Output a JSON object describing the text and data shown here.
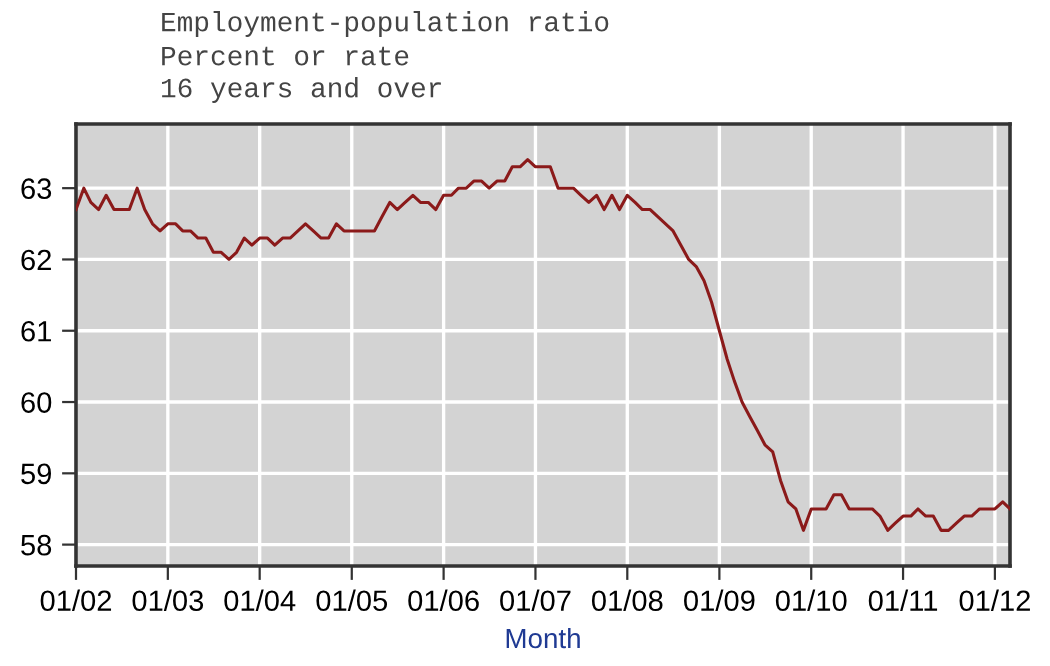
{
  "chart_data": {
    "type": "line",
    "title": "Employment-population ratio",
    "subtitle": "Percent or rate\n16 years and over",
    "xlabel": "Month",
    "x": [
      "2002-01",
      "2002-02",
      "2002-03",
      "2002-04",
      "2002-05",
      "2002-06",
      "2002-07",
      "2002-08",
      "2002-09",
      "2002-10",
      "2002-11",
      "2002-12",
      "2003-01",
      "2003-02",
      "2003-03",
      "2003-04",
      "2003-05",
      "2003-06",
      "2003-07",
      "2003-08",
      "2003-09",
      "2003-10",
      "2003-11",
      "2003-12",
      "2004-01",
      "2004-02",
      "2004-03",
      "2004-04",
      "2004-05",
      "2004-06",
      "2004-07",
      "2004-08",
      "2004-09",
      "2004-10",
      "2004-11",
      "2004-12",
      "2005-01",
      "2005-02",
      "2005-03",
      "2005-04",
      "2005-05",
      "2005-06",
      "2005-07",
      "2005-08",
      "2005-09",
      "2005-10",
      "2005-11",
      "2005-12",
      "2006-01",
      "2006-02",
      "2006-03",
      "2006-04",
      "2006-05",
      "2006-06",
      "2006-07",
      "2006-08",
      "2006-09",
      "2006-10",
      "2006-11",
      "2006-12",
      "2007-01",
      "2007-02",
      "2007-03",
      "2007-04",
      "2007-05",
      "2007-06",
      "2007-07",
      "2007-08",
      "2007-09",
      "2007-10",
      "2007-11",
      "2007-12",
      "2008-01",
      "2008-02",
      "2008-03",
      "2008-04",
      "2008-05",
      "2008-06",
      "2008-07",
      "2008-08",
      "2008-09",
      "2008-10",
      "2008-11",
      "2008-12",
      "2009-01",
      "2009-02",
      "2009-03",
      "2009-04",
      "2009-05",
      "2009-06",
      "2009-07",
      "2009-08",
      "2009-09",
      "2009-10",
      "2009-11",
      "2009-12",
      "2010-01",
      "2010-02",
      "2010-03",
      "2010-04",
      "2010-05",
      "2010-06",
      "2010-07",
      "2010-08",
      "2010-09",
      "2010-10",
      "2010-11",
      "2010-12",
      "2011-01",
      "2011-02",
      "2011-03",
      "2011-04",
      "2011-05",
      "2011-06",
      "2011-07",
      "2011-08",
      "2011-09",
      "2011-10",
      "2011-11",
      "2011-12",
      "2012-01",
      "2012-02",
      "2012-03"
    ],
    "series": [
      {
        "color": "#8b1a1a",
        "values": [
          62.7,
          63.0,
          62.8,
          62.7,
          62.9,
          62.7,
          62.7,
          62.7,
          63.0,
          62.7,
          62.5,
          62.4,
          62.5,
          62.5,
          62.4,
          62.4,
          62.3,
          62.3,
          62.1,
          62.1,
          62.0,
          62.1,
          62.3,
          62.2,
          62.3,
          62.3,
          62.2,
          62.3,
          62.3,
          62.4,
          62.5,
          62.4,
          62.3,
          62.3,
          62.5,
          62.4,
          62.4,
          62.4,
          62.4,
          62.4,
          62.6,
          62.8,
          62.7,
          62.8,
          62.9,
          62.8,
          62.8,
          62.7,
          62.9,
          62.9,
          63.0,
          63.0,
          63.1,
          63.1,
          63.0,
          63.1,
          63.1,
          63.3,
          63.3,
          63.4,
          63.3,
          63.3,
          63.3,
          63.0,
          63.0,
          63.0,
          62.9,
          62.8,
          62.9,
          62.7,
          62.9,
          62.7,
          62.9,
          62.8,
          62.7,
          62.7,
          62.6,
          62.5,
          62.4,
          62.2,
          62.0,
          61.9,
          61.7,
          61.4,
          61.0,
          60.6,
          60.3,
          60.0,
          59.8,
          59.6,
          59.4,
          59.3,
          58.9,
          58.6,
          58.5,
          58.2,
          58.5,
          58.5,
          58.5,
          58.7,
          58.7,
          58.5,
          58.5,
          58.5,
          58.5,
          58.4,
          58.2,
          58.3,
          58.4,
          58.4,
          58.5,
          58.4,
          58.4,
          58.2,
          58.2,
          58.3,
          58.4,
          58.4,
          58.5,
          58.5,
          58.5,
          58.6,
          58.5
        ]
      }
    ],
    "xlim": [
      "2002-01",
      "2012-03"
    ],
    "xticks": [
      {
        "value": "2002-01",
        "label": "01/02"
      },
      {
        "value": "2003-01",
        "label": "01/03"
      },
      {
        "value": "2004-01",
        "label": "01/04"
      },
      {
        "value": "2005-01",
        "label": "01/05"
      },
      {
        "value": "2006-01",
        "label": "01/06"
      },
      {
        "value": "2007-01",
        "label": "01/07"
      },
      {
        "value": "2008-01",
        "label": "01/08"
      },
      {
        "value": "2009-01",
        "label": "01/09"
      },
      {
        "value": "2010-01",
        "label": "01/10"
      },
      {
        "value": "2011-01",
        "label": "01/11"
      },
      {
        "value": "2012-01",
        "label": "01/12"
      }
    ],
    "ylim": [
      57.7,
      63.9
    ],
    "yticks": [
      58,
      59,
      60,
      61,
      62,
      63
    ],
    "grid": true,
    "line_style": "solid",
    "marker": "none"
  }
}
